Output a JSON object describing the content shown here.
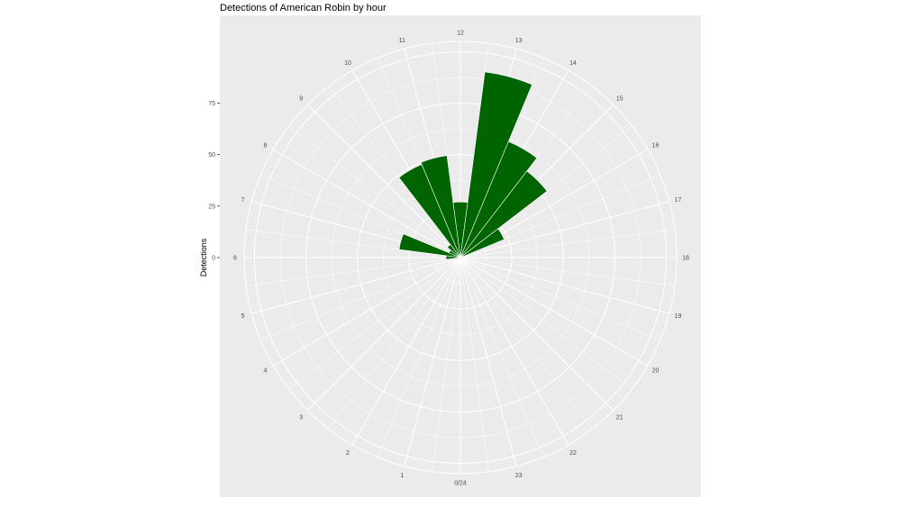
{
  "chart_data": {
    "type": "bar",
    "coord": "polar",
    "title": "Detections of American Robin by hour",
    "xlabel": "",
    "ylabel": "Detections",
    "categories": [
      "0/24",
      "1",
      "2",
      "3",
      "4",
      "5",
      "6",
      "7",
      "8",
      "9",
      "10",
      "11",
      "12",
      "13",
      "14",
      "15",
      "16",
      "17",
      "18",
      "19",
      "20",
      "21",
      "22",
      "23"
    ],
    "values": [
      0,
      0,
      0,
      0,
      0,
      0,
      7,
      30,
      6,
      8,
      49,
      50,
      27,
      91,
      61,
      53,
      23,
      0,
      0,
      0,
      0,
      0,
      0,
      0
    ],
    "ylim": [
      0,
      105
    ],
    "yticks": [
      0,
      25,
      50,
      75
    ],
    "ytick_labels": [
      "0",
      "25",
      "50",
      "75"
    ],
    "bar_color": "#006400",
    "panel_background": "#ebebeb",
    "grid_color": "#ffffff",
    "grid": true,
    "legend": "none"
  }
}
